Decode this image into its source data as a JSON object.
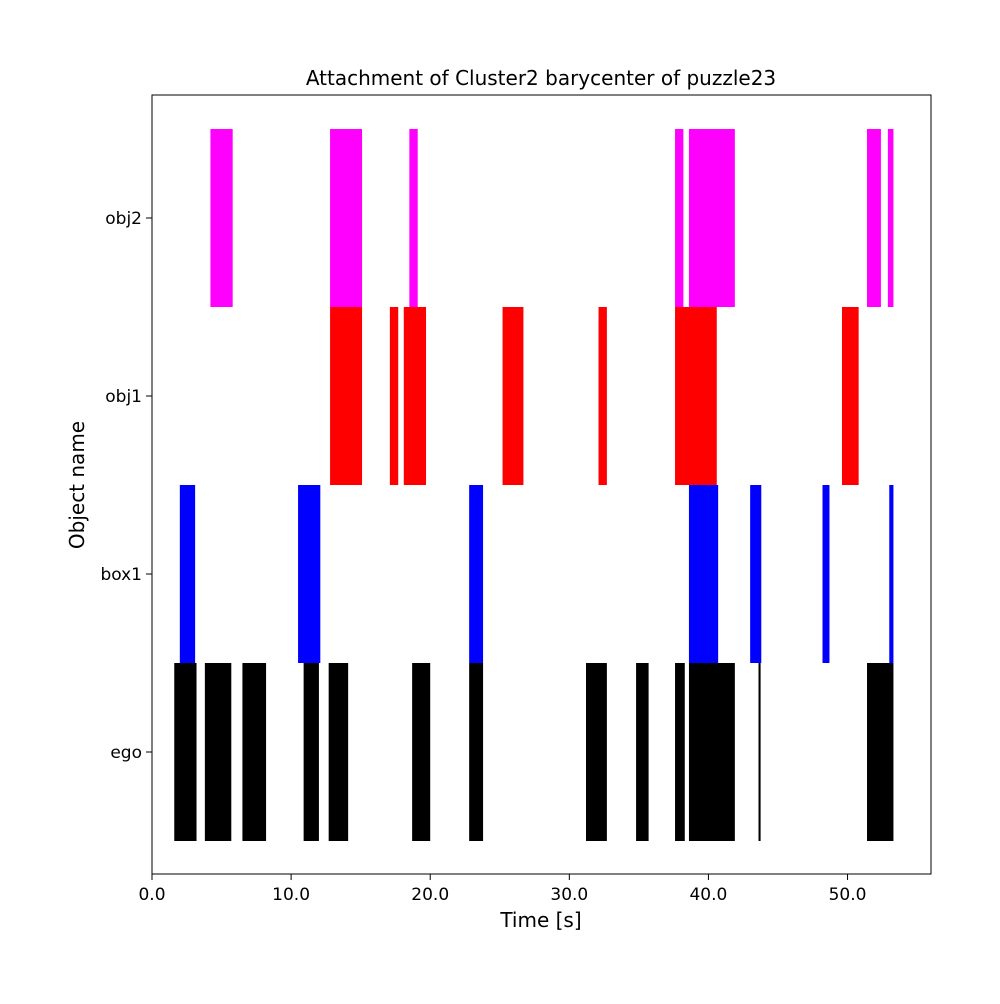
{
  "chart_data": {
    "type": "bar",
    "subtype": "broken-barh timeline",
    "title": "Attachment of Cluster2 barycenter of puzzle23",
    "xlabel": "Time [s]",
    "ylabel": "Object name",
    "xlim": [
      0,
      56
    ],
    "xticks": [
      0,
      10,
      20,
      30,
      40,
      50
    ],
    "xtick_labels": [
      "0.0",
      "10.0",
      "20.0",
      "30.0",
      "40.0",
      "50.0"
    ],
    "categories": [
      "ego",
      "box1",
      "obj1",
      "obj2"
    ],
    "grid": false,
    "legend": "none",
    "series": [
      {
        "category": "ego",
        "color": "#000000",
        "intervals": [
          [
            1.6,
            3.2
          ],
          [
            3.8,
            5.7
          ],
          [
            6.5,
            8.2
          ],
          [
            10.9,
            12.0
          ],
          [
            12.7,
            14.1
          ],
          [
            18.7,
            20.0
          ],
          [
            22.8,
            23.8
          ],
          [
            31.2,
            32.7
          ],
          [
            34.8,
            35.7
          ],
          [
            37.6,
            38.3
          ],
          [
            38.6,
            41.9
          ],
          [
            43.6,
            43.75
          ],
          [
            51.4,
            53.3
          ]
        ]
      },
      {
        "category": "box1",
        "color": "#0000ff",
        "intervals": [
          [
            2.0,
            3.1
          ],
          [
            10.5,
            12.1
          ],
          [
            22.8,
            23.8
          ],
          [
            38.6,
            40.7
          ],
          [
            43.0,
            43.8
          ],
          [
            48.2,
            48.7
          ],
          [
            53.0,
            53.3
          ]
        ]
      },
      {
        "category": "obj1",
        "color": "#ff0000",
        "intervals": [
          [
            12.8,
            15.1
          ],
          [
            17.1,
            17.7
          ],
          [
            18.1,
            19.7
          ],
          [
            25.2,
            26.7
          ],
          [
            32.1,
            32.7
          ],
          [
            37.6,
            40.6
          ],
          [
            49.6,
            50.8
          ]
        ]
      },
      {
        "category": "obj2",
        "color": "#ff00ff",
        "intervals": [
          [
            4.2,
            5.8
          ],
          [
            12.8,
            15.1
          ],
          [
            18.5,
            19.1
          ],
          [
            37.6,
            38.2
          ],
          [
            38.6,
            41.9
          ],
          [
            51.4,
            52.4
          ],
          [
            52.9,
            53.3
          ]
        ]
      }
    ]
  }
}
